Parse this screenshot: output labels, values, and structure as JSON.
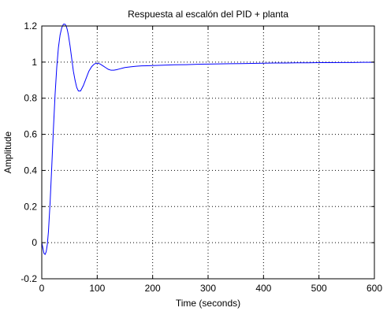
{
  "chart_data": {
    "type": "line",
    "title": "Respuesta al escalón del PID + planta",
    "xlabel": "Time (seconds)",
    "ylabel": "Amplitude",
    "xlim": [
      0,
      600
    ],
    "ylim": [
      -0.2,
      1.2
    ],
    "x_ticks": [
      0,
      100,
      200,
      300,
      400,
      500,
      600
    ],
    "y_ticks": [
      -0.2,
      0,
      0.2,
      0.4,
      0.6,
      0.8,
      1,
      1.2
    ],
    "x_tick_labels": [
      "0",
      "100",
      "200",
      "300",
      "400",
      "500",
      "600"
    ],
    "y_tick_labels": [
      "-0.2",
      "0",
      "0.2",
      "0.4",
      "0.6",
      "0.8",
      "1",
      "1.2"
    ],
    "grid": true,
    "series": [
      {
        "color": "#0000ff",
        "x": [
          0,
          2,
          4,
          6,
          8,
          10,
          12,
          15,
          18,
          21,
          24,
          27,
          30,
          33,
          36,
          39,
          42,
          44,
          46,
          48,
          51,
          54,
          57,
          60,
          63,
          66,
          70,
          75,
          80,
          85,
          90,
          95,
          100,
          105,
          110,
          115,
          120,
          125,
          130,
          135,
          140,
          145,
          150,
          160,
          170,
          180,
          190,
          200,
          220,
          240,
          260,
          280,
          300,
          320,
          340,
          360,
          380,
          400,
          420,
          440,
          460,
          480,
          500,
          520,
          540,
          560,
          580,
          600
        ],
        "y": [
          0,
          -0.03,
          -0.06,
          -0.065,
          -0.05,
          -0.01,
          0.06,
          0.22,
          0.42,
          0.63,
          0.82,
          0.97,
          1.08,
          1.15,
          1.19,
          1.21,
          1.21,
          1.2,
          1.18,
          1.15,
          1.09,
          1.02,
          0.95,
          0.9,
          0.86,
          0.84,
          0.84,
          0.87,
          0.91,
          0.95,
          0.975,
          0.99,
          0.995,
          0.99,
          0.98,
          0.97,
          0.96,
          0.955,
          0.955,
          0.958,
          0.962,
          0.966,
          0.97,
          0.974,
          0.977,
          0.979,
          0.98,
          0.981,
          0.983,
          0.985,
          0.986,
          0.988,
          0.989,
          0.99,
          0.991,
          0.992,
          0.993,
          0.994,
          0.995,
          0.995,
          0.996,
          0.996,
          0.997,
          0.997,
          0.998,
          0.998,
          0.999,
          0.999
        ]
      }
    ]
  }
}
